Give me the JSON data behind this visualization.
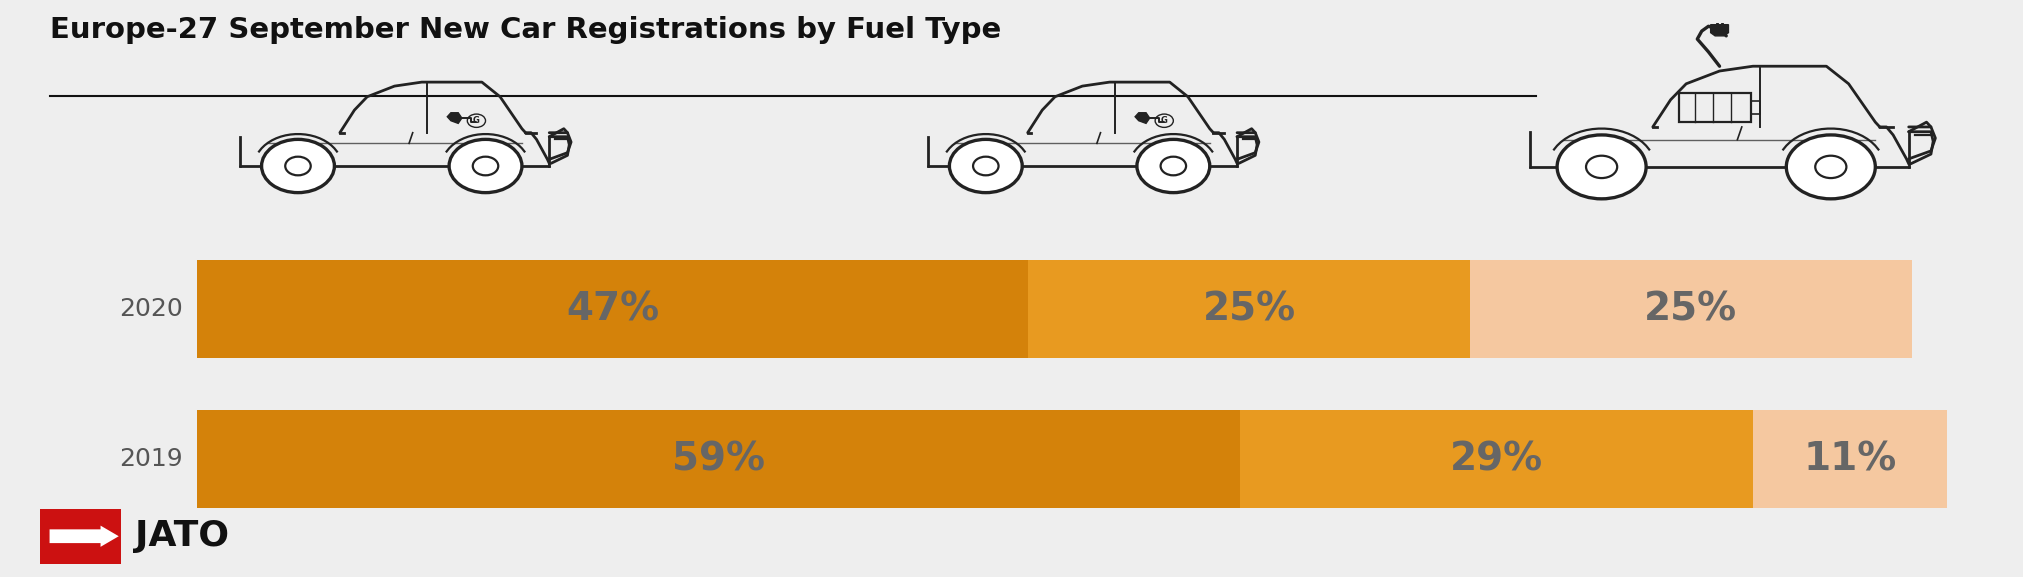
{
  "title": "Europe-27 September New Car Registrations by Fuel Type",
  "background_color": "#eeeeee",
  "years": [
    "2020",
    "2019"
  ],
  "segments_2020": [
    47,
    25,
    25
  ],
  "segments_2019": [
    59,
    29,
    11
  ],
  "labels_2020": [
    "47%",
    "25%",
    "25%"
  ],
  "labels_2019": [
    "59%",
    "29%",
    "11%"
  ],
  "colors_2020": [
    "#D4820A",
    "#E89A20",
    "#F5C8A0"
  ],
  "colors_2019": [
    "#D4820A",
    "#E89A20",
    "#F5C8A0"
  ],
  "label_color": "#666666",
  "title_fontsize": 21,
  "label_fontsize": 28,
  "year_fontsize": 18,
  "car_color": "#222222",
  "jato_red": "#CC1111"
}
